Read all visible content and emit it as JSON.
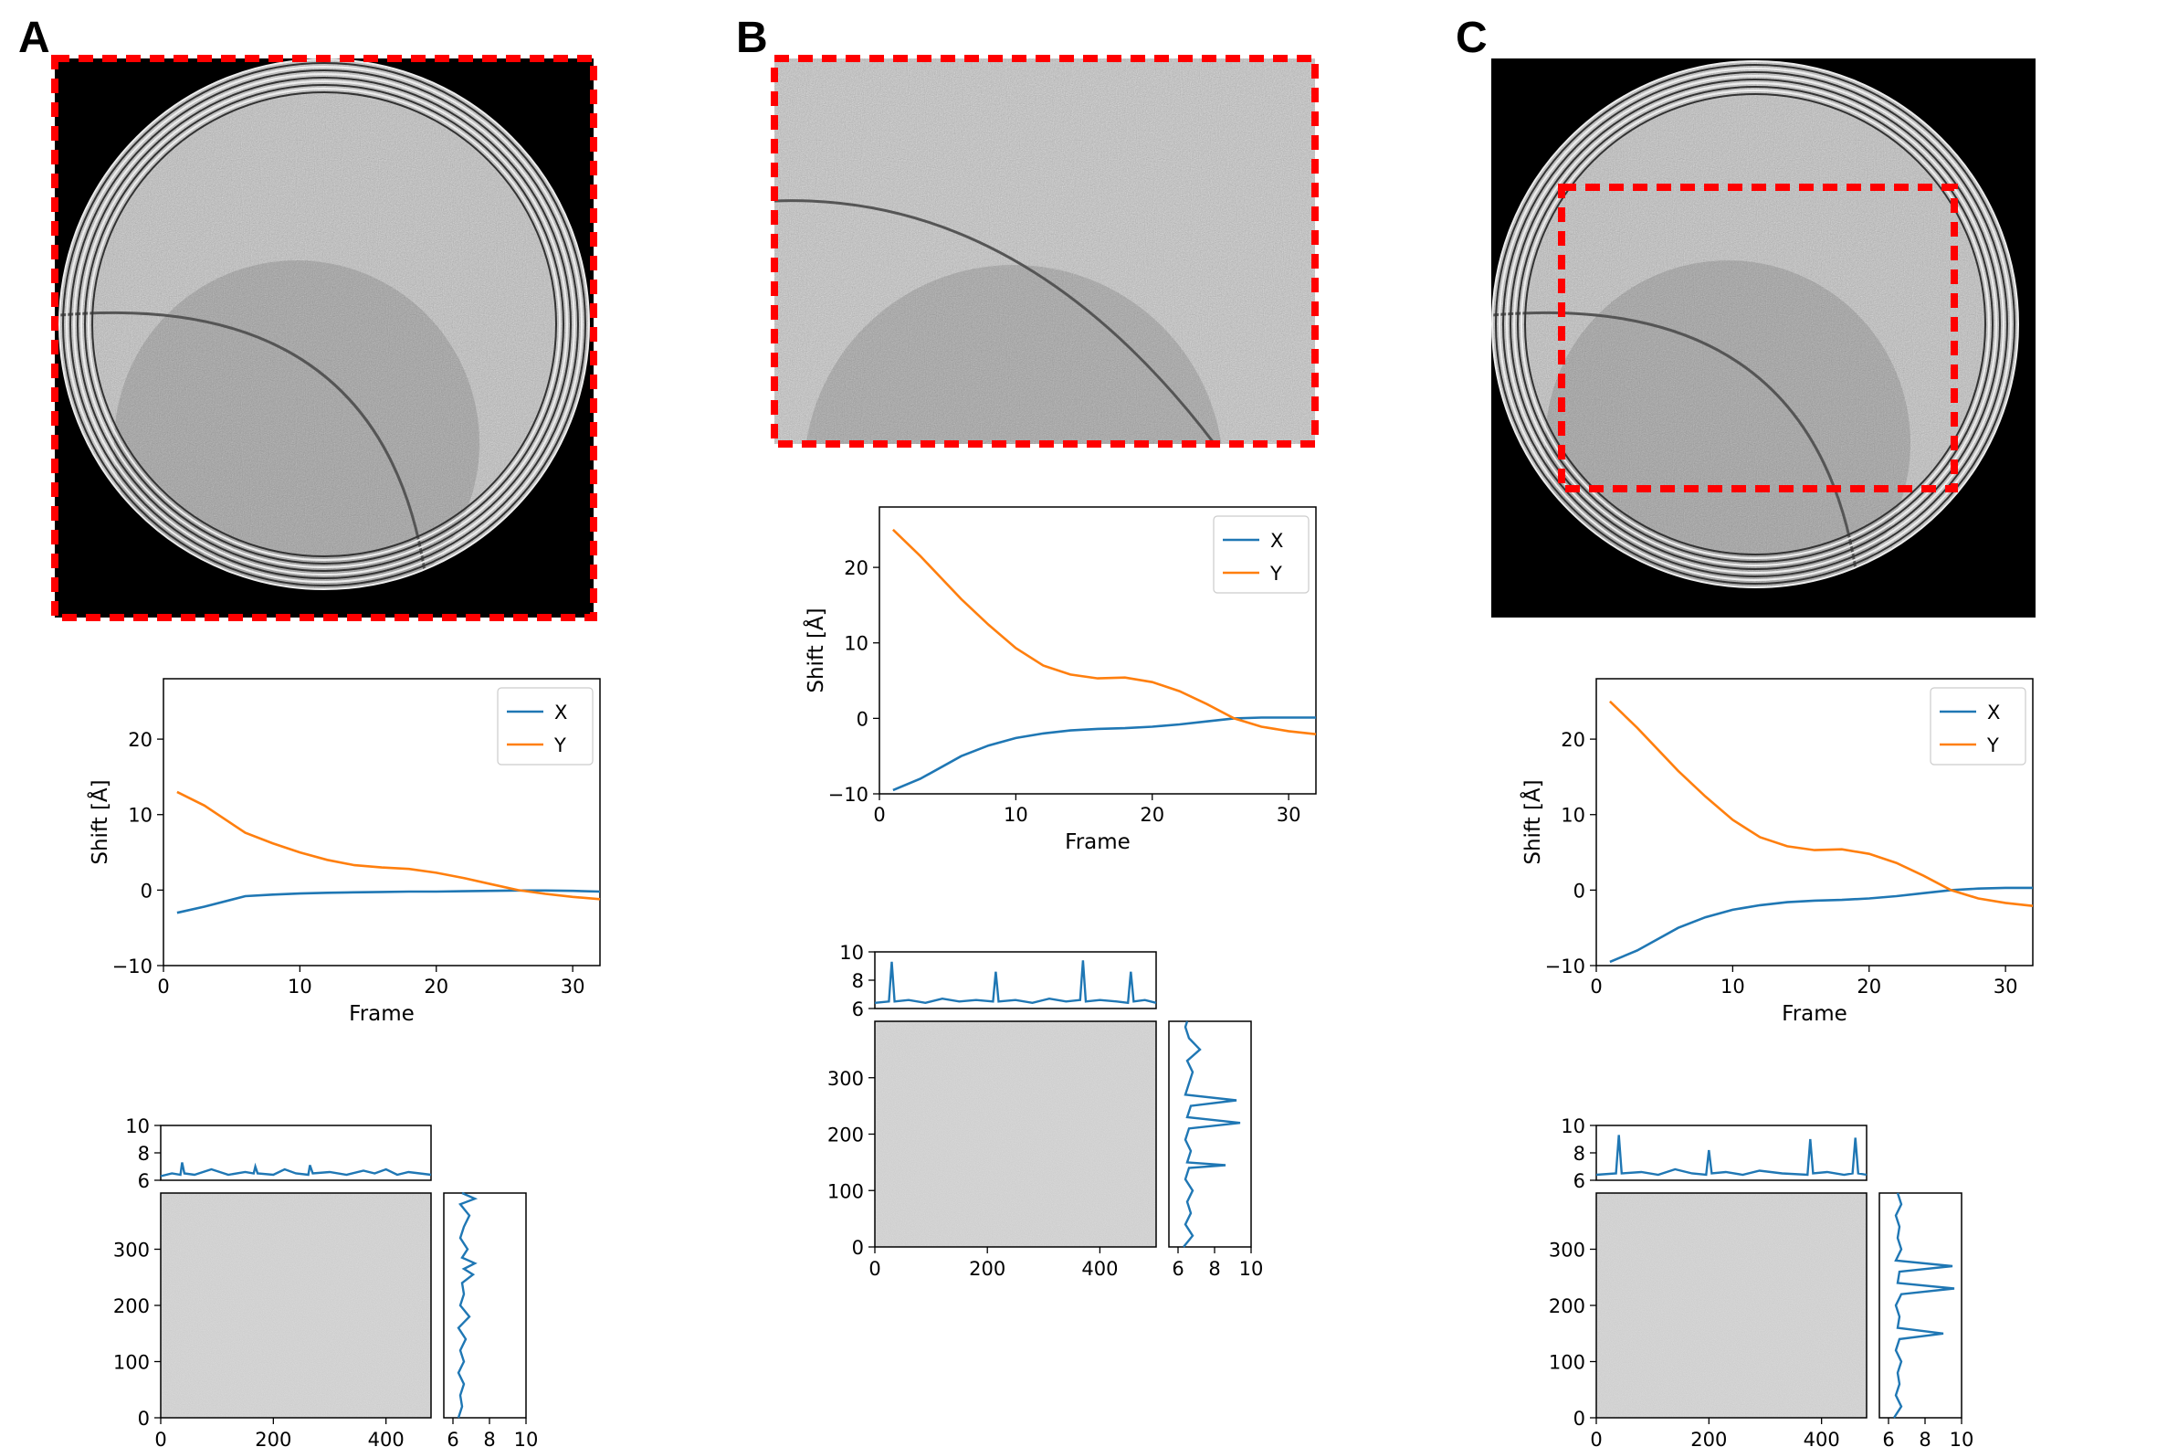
{
  "panels": [
    "A",
    "B",
    "C"
  ],
  "colors": {
    "x_series": "#1f77b4",
    "y_series": "#ff7f0e",
    "crop_box": "#ff0000",
    "heatmap_gray": "#c8c8c8"
  },
  "chart_data": [
    {
      "panel": "A",
      "type": "line",
      "xlabel": "Frame",
      "ylabel": "Shift [Å]",
      "xlim": [
        0,
        32
      ],
      "ylim": [
        -10,
        28
      ],
      "xticks": [
        0,
        10,
        20,
        30
      ],
      "yticks": [
        -10,
        0,
        10,
        20
      ],
      "legend": "top-right",
      "x": [
        1,
        3,
        6,
        8,
        10,
        12,
        14,
        16,
        18,
        20,
        22,
        24,
        26,
        28,
        30,
        32
      ],
      "series": [
        {
          "name": "X",
          "values": [
            -3,
            -2.2,
            -0.8,
            -0.6,
            -0.45,
            -0.35,
            -0.3,
            -0.25,
            -0.2,
            -0.2,
            -0.15,
            -0.1,
            -0.05,
            -0.05,
            -0.1,
            -0.2
          ]
        },
        {
          "name": "Y",
          "values": [
            13,
            11.2,
            7.6,
            6.2,
            5,
            4,
            3.3,
            3,
            2.8,
            2.3,
            1.6,
            0.8,
            0,
            -0.5,
            -0.9,
            -1.2
          ]
        }
      ]
    },
    {
      "panel": "B",
      "type": "line",
      "xlabel": "Frame",
      "ylabel": "Shift [Å]",
      "xlim": [
        0,
        32
      ],
      "ylim": [
        -10,
        28
      ],
      "xticks": [
        0,
        10,
        20,
        30
      ],
      "yticks": [
        -10,
        0,
        10,
        20
      ],
      "legend": "top-right",
      "x": [
        1,
        3,
        6,
        8,
        10,
        12,
        14,
        16,
        18,
        20,
        22,
        24,
        26,
        28,
        30,
        32
      ],
      "series": [
        {
          "name": "X",
          "values": [
            -9.5,
            -8,
            -5,
            -3.6,
            -2.6,
            -2,
            -1.6,
            -1.4,
            -1.3,
            -1.1,
            -0.8,
            -0.4,
            0,
            0.1,
            0.1,
            0.1
          ]
        },
        {
          "name": "Y",
          "values": [
            25,
            21.5,
            15.8,
            12.4,
            9.3,
            7,
            5.8,
            5.3,
            5.4,
            4.8,
            3.6,
            1.9,
            0,
            -1.1,
            -1.7,
            -2.1
          ]
        }
      ]
    },
    {
      "panel": "C",
      "type": "line",
      "xlabel": "Frame",
      "ylabel": "Shift [Å]",
      "xlim": [
        0,
        32
      ],
      "ylim": [
        -10,
        28
      ],
      "xticks": [
        0,
        10,
        20,
        30
      ],
      "yticks": [
        -10,
        0,
        10,
        20
      ],
      "legend": "top-right",
      "x": [
        1,
        3,
        6,
        8,
        10,
        12,
        14,
        16,
        18,
        20,
        22,
        24,
        26,
        28,
        30,
        32
      ],
      "series": [
        {
          "name": "X",
          "values": [
            -9.5,
            -8,
            -5,
            -3.6,
            -2.6,
            -2,
            -1.6,
            -1.4,
            -1.3,
            -1.1,
            -0.8,
            -0.4,
            0,
            0.2,
            0.3,
            0.3
          ]
        },
        {
          "name": "Y",
          "values": [
            25,
            21.5,
            15.8,
            12.4,
            9.3,
            7,
            5.8,
            5.3,
            5.4,
            4.8,
            3.6,
            1.9,
            0,
            -1.1,
            -1.7,
            -2.1
          ]
        }
      ]
    },
    {
      "panel": "A",
      "type": "heatmap",
      "xlim": [
        0,
        480
      ],
      "ylim": [
        0,
        400
      ],
      "xticks": [
        0,
        200,
        400
      ],
      "yticks": [
        0,
        100,
        200,
        300
      ],
      "top_profile": {
        "ylim": [
          6,
          10
        ],
        "yticks": [
          6,
          8,
          10
        ],
        "x": [
          0,
          20,
          35,
          38,
          42,
          60,
          90,
          120,
          150,
          165,
          168,
          172,
          200,
          220,
          240,
          262,
          265,
          270,
          300,
          330,
          360,
          380,
          400,
          420,
          440,
          460,
          480
        ],
        "values": [
          6.3,
          6.5,
          6.4,
          7.3,
          6.5,
          6.4,
          6.8,
          6.4,
          6.6,
          6.5,
          7.0,
          6.5,
          6.4,
          6.8,
          6.5,
          6.4,
          7.1,
          6.5,
          6.6,
          6.4,
          6.7,
          6.5,
          6.8,
          6.4,
          6.6,
          6.5,
          6.4
        ]
      },
      "right_profile": {
        "xlim": [
          5.5,
          10
        ],
        "xticks": [
          6,
          8,
          10
        ],
        "y": [
          0,
          20,
          40,
          60,
          80,
          100,
          120,
          140,
          160,
          180,
          200,
          220,
          240,
          255,
          265,
          275,
          285,
          300,
          320,
          340,
          360,
          380,
          390,
          400
        ],
        "values": [
          6.3,
          6.5,
          6.4,
          6.6,
          6.3,
          6.6,
          6.4,
          6.7,
          6.3,
          6.9,
          6.4,
          6.6,
          6.5,
          7.1,
          6.6,
          7.2,
          6.5,
          6.8,
          6.4,
          6.6,
          6.9,
          6.4,
          7.2,
          6.5
        ]
      }
    },
    {
      "panel": "B",
      "type": "heatmap",
      "xlim": [
        0,
        500
      ],
      "ylim": [
        0,
        400
      ],
      "xticks": [
        0,
        200,
        400
      ],
      "yticks": [
        0,
        100,
        200,
        300
      ],
      "top_profile": {
        "ylim": [
          6,
          10
        ],
        "yticks": [
          6,
          8,
          10
        ],
        "x": [
          0,
          25,
          30,
          35,
          60,
          90,
          120,
          150,
          180,
          210,
          215,
          220,
          250,
          280,
          310,
          340,
          365,
          370,
          375,
          400,
          430,
          450,
          455,
          460,
          480,
          500
        ],
        "values": [
          6.4,
          6.5,
          9.3,
          6.5,
          6.6,
          6.4,
          6.7,
          6.5,
          6.6,
          6.5,
          8.6,
          6.5,
          6.6,
          6.4,
          6.7,
          6.5,
          6.6,
          9.4,
          6.5,
          6.6,
          6.5,
          6.4,
          8.6,
          6.5,
          6.6,
          6.4
        ]
      },
      "right_profile": {
        "xlim": [
          5.5,
          10
        ],
        "xticks": [
          6,
          8,
          10
        ],
        "y": [
          0,
          20,
          40,
          60,
          80,
          100,
          120,
          140,
          145,
          150,
          170,
          190,
          210,
          220,
          230,
          250,
          260,
          270,
          290,
          310,
          330,
          350,
          370,
          390,
          400
        ],
        "values": [
          6.3,
          6.8,
          6.4,
          6.7,
          6.5,
          6.8,
          6.4,
          6.6,
          8.6,
          6.5,
          6.7,
          6.4,
          6.6,
          9.4,
          6.5,
          6.7,
          9.2,
          6.4,
          6.6,
          6.8,
          6.5,
          7.2,
          6.6,
          6.4,
          6.5
        ]
      }
    },
    {
      "panel": "C",
      "type": "heatmap",
      "xlim": [
        0,
        480
      ],
      "ylim": [
        0,
        400
      ],
      "xticks": [
        0,
        200,
        400
      ],
      "yticks": [
        0,
        100,
        200,
        300
      ],
      "top_profile": {
        "ylim": [
          6,
          10
        ],
        "yticks": [
          6,
          8,
          10
        ],
        "x": [
          0,
          35,
          40,
          45,
          80,
          110,
          140,
          170,
          195,
          200,
          205,
          230,
          260,
          290,
          330,
          375,
          380,
          385,
          410,
          440,
          455,
          460,
          465,
          480
        ],
        "values": [
          6.4,
          6.5,
          9.3,
          6.5,
          6.6,
          6.4,
          6.8,
          6.5,
          6.4,
          8.2,
          6.5,
          6.6,
          6.4,
          6.7,
          6.5,
          6.4,
          9.0,
          6.5,
          6.6,
          6.4,
          6.5,
          9.1,
          6.5,
          6.4
        ]
      },
      "right_profile": {
        "xlim": [
          5.5,
          10
        ],
        "xticks": [
          6,
          8,
          10
        ],
        "y": [
          0,
          20,
          40,
          60,
          80,
          100,
          120,
          140,
          150,
          160,
          180,
          200,
          220,
          230,
          240,
          260,
          270,
          280,
          300,
          320,
          340,
          360,
          380,
          400
        ],
        "values": [
          6.3,
          6.7,
          6.4,
          6.6,
          6.5,
          6.7,
          6.4,
          6.6,
          9.0,
          6.5,
          6.6,
          6.4,
          6.7,
          9.6,
          6.5,
          6.6,
          9.5,
          6.4,
          6.7,
          6.5,
          6.6,
          6.4,
          6.7,
          6.5
        ]
      }
    }
  ]
}
